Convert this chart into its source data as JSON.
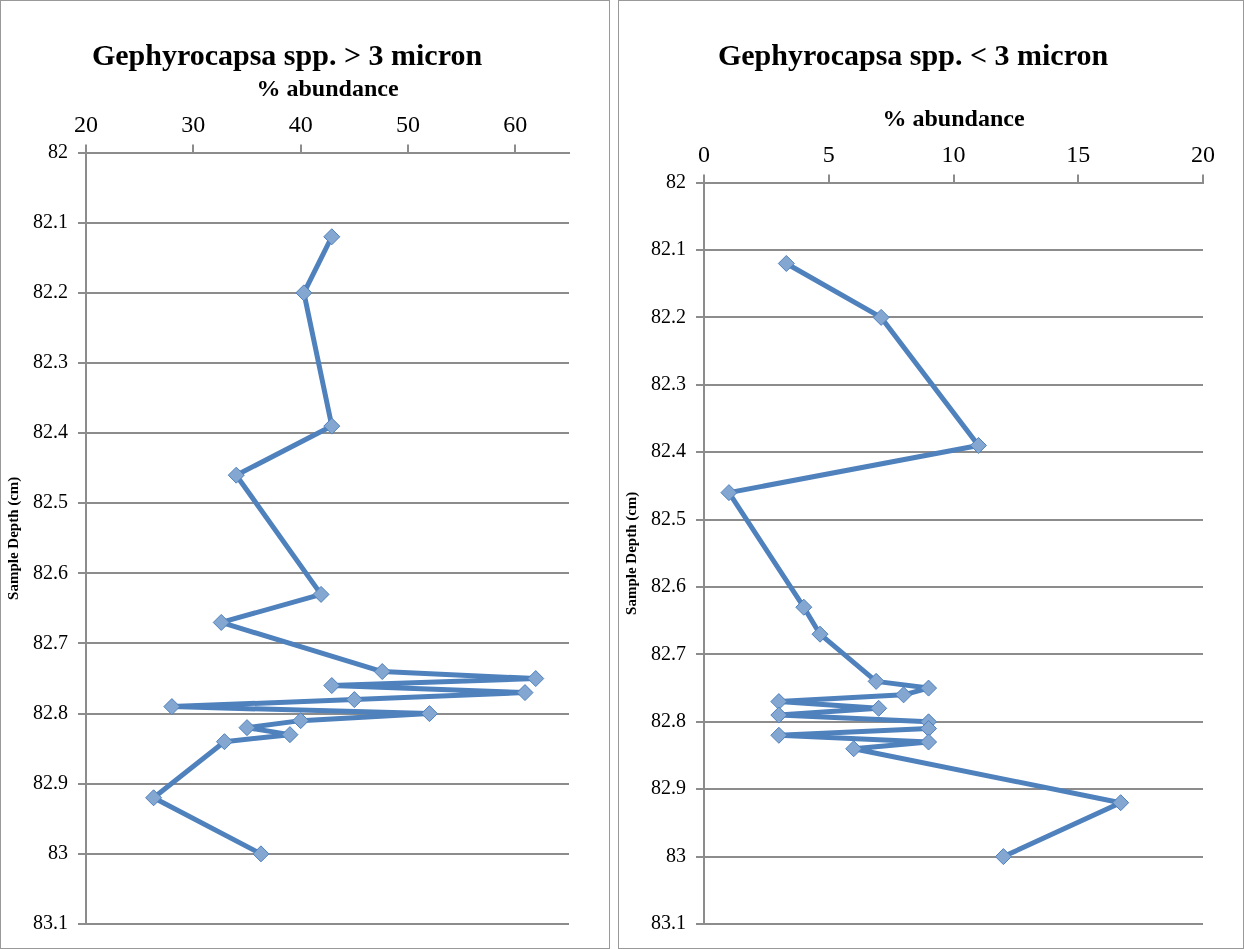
{
  "chart_data": [
    {
      "type": "line",
      "title": "Gephyrocapsa spp. > 3 micron",
      "xlabel": "% abundance",
      "ylabel": "Sample Depth (cm)",
      "xlim": [
        20,
        65
      ],
      "xticks": [
        20,
        30,
        40,
        50,
        60
      ],
      "ylim": [
        83.1,
        82
      ],
      "yticks": [
        82,
        82.1,
        82.2,
        82.3,
        82.4,
        82.5,
        82.6,
        82.7,
        82.8,
        82.9,
        83,
        83.1
      ],
      "grid": "y",
      "legend": false,
      "marker": "diamond",
      "line_style": "solid",
      "series": [
        {
          "color": "#4f81bd",
          "x": [
            42.9,
            40.3,
            42.9,
            34.0,
            41.9,
            32.6,
            47.6,
            61.9,
            42.9,
            60.9,
            45.0,
            28.0,
            52.0,
            40.0,
            35.0,
            39.0,
            32.9,
            26.3,
            36.3
          ],
          "values": [
            82.12,
            82.2,
            82.39,
            82.46,
            82.63,
            82.67,
            82.74,
            82.75,
            82.76,
            82.77,
            82.78,
            82.79,
            82.8,
            82.81,
            82.82,
            82.83,
            82.84,
            82.92,
            83.0
          ]
        }
      ]
    },
    {
      "type": "line",
      "title": "Gephyrocapsa spp. < 3 micron",
      "xlabel": "% abundance",
      "ylabel": "Sample Depth (cm)",
      "xlim": [
        0,
        20
      ],
      "xticks": [
        0,
        5,
        10,
        15,
        20
      ],
      "ylim": [
        83.1,
        82
      ],
      "yticks": [
        82,
        82.1,
        82.2,
        82.3,
        82.4,
        82.5,
        82.6,
        82.7,
        82.8,
        82.9,
        83,
        83.1
      ],
      "grid": "y",
      "legend": false,
      "marker": "diamond",
      "line_style": "solid",
      "series": [
        {
          "color": "#4f81bd",
          "x": [
            3.3,
            7.1,
            11.0,
            1.0,
            4.0,
            4.65,
            6.9,
            9.0,
            8.0,
            3.0,
            7.0,
            3.0,
            9.0,
            9.0,
            3.0,
            9.0,
            6.0,
            16.7,
            12.0
          ],
          "values": [
            82.12,
            82.2,
            82.39,
            82.46,
            82.63,
            82.67,
            82.74,
            82.75,
            82.76,
            82.77,
            82.78,
            82.79,
            82.8,
            82.81,
            82.82,
            82.83,
            82.84,
            82.92,
            83.0
          ]
        }
      ]
    }
  ]
}
